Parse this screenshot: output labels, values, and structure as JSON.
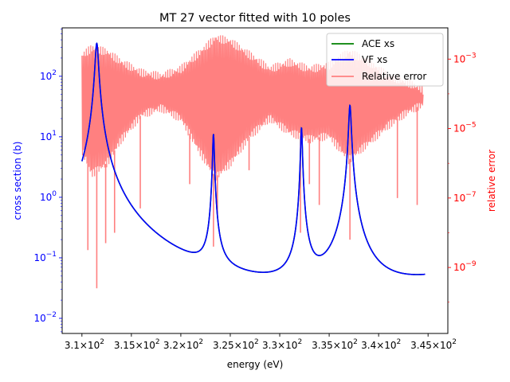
{
  "chart_data": {
    "type": "line",
    "title": "MT 27 vector fitted with 10 poles",
    "xlabel": "energy (eV)",
    "ylabel_left": "cross section (b)",
    "ylabel_right": "relative error",
    "xlim": [
      308,
      347
    ],
    "ylim_left_log10": [
      -2.25,
      2.8
    ],
    "ylim_right_log10": [
      -10.9,
      -2.1
    ],
    "x_scale": "linear",
    "y_left_scale": "log",
    "y_right_scale": "log",
    "x_ticks": [
      {
        "v": 310,
        "mant": "3.1",
        "exp": "2"
      },
      {
        "v": 315,
        "mant": "3.15",
        "exp": "2"
      },
      {
        "v": 320,
        "mant": "3.2",
        "exp": "2"
      },
      {
        "v": 325,
        "mant": "3.25",
        "exp": "2"
      },
      {
        "v": 330,
        "mant": "3.3",
        "exp": "2"
      },
      {
        "v": 335,
        "mant": "3.35",
        "exp": "2"
      },
      {
        "v": 340,
        "mant": "3.4",
        "exp": "2"
      },
      {
        "v": 345,
        "mant": "3.45",
        "exp": "2"
      }
    ],
    "y_left_ticks": [
      {
        "e": -2,
        "label": "10",
        "exp": "−2"
      },
      {
        "e": -1,
        "label": "10",
        "exp": "−1"
      },
      {
        "e": 0,
        "label": "10",
        "exp": "0"
      },
      {
        "e": 1,
        "label": "10",
        "exp": "1"
      },
      {
        "e": 2,
        "label": "10",
        "exp": "2"
      }
    ],
    "y_right_ticks": [
      {
        "e": -9,
        "label": "10",
        "exp": "−9"
      },
      {
        "e": -7,
        "label": "10",
        "exp": "−7"
      },
      {
        "e": -5,
        "label": "10",
        "exp": "−5"
      },
      {
        "e": -3,
        "label": "10",
        "exp": "−3"
      }
    ],
    "resonances": [
      {
        "x0": 311.5,
        "peak": 350,
        "gamma": 0.16
      },
      {
        "x0": 323.3,
        "peak": 11,
        "gamma": 0.08
      },
      {
        "x0": 332.2,
        "peak": 14,
        "gamma": 0.08
      },
      {
        "x0": 337.1,
        "peak": 33,
        "gamma": 0.12
      }
    ],
    "error_envelope": {
      "points": [
        {
          "x": 310.0,
          "upper_log10": -2.9,
          "lower_log10": -5.6
        },
        {
          "x": 311.0,
          "upper_log10": -2.7,
          "lower_log10": -6.3
        },
        {
          "x": 312.5,
          "upper_log10": -2.8,
          "lower_log10": -6.0
        },
        {
          "x": 314.0,
          "upper_log10": -3.1,
          "lower_log10": -5.3
        },
        {
          "x": 316.0,
          "upper_log10": -3.4,
          "lower_log10": -4.6
        },
        {
          "x": 318.0,
          "upper_log10": -3.5,
          "lower_log10": -4.4
        },
        {
          "x": 320.0,
          "upper_log10": -3.3,
          "lower_log10": -4.7
        },
        {
          "x": 322.0,
          "upper_log10": -2.8,
          "lower_log10": -5.7
        },
        {
          "x": 323.5,
          "upper_log10": -2.4,
          "lower_log10": -6.4
        },
        {
          "x": 325.0,
          "upper_log10": -2.5,
          "lower_log10": -6.0
        },
        {
          "x": 327.0,
          "upper_log10": -2.9,
          "lower_log10": -5.2
        },
        {
          "x": 329.0,
          "upper_log10": -3.3,
          "lower_log10": -4.7
        },
        {
          "x": 331.0,
          "upper_log10": -3.1,
          "lower_log10": -5.1
        },
        {
          "x": 333.0,
          "upper_log10": -3.3,
          "lower_log10": -5.3
        },
        {
          "x": 335.0,
          "upper_log10": -3.2,
          "lower_log10": -5.2
        },
        {
          "x": 337.0,
          "upper_log10": -2.8,
          "lower_log10": -5.9
        },
        {
          "x": 339.0,
          "upper_log10": -3.1,
          "lower_log10": -5.4
        },
        {
          "x": 341.0,
          "upper_log10": -3.5,
          "lower_log10": -4.9
        },
        {
          "x": 343.0,
          "upper_log10": -3.7,
          "lower_log10": -4.5
        },
        {
          "x": 344.5,
          "upper_log10": -3.9,
          "lower_log10": -4.3
        }
      ],
      "dips": [
        {
          "x": 310.6,
          "log10": -8.5
        },
        {
          "x": 311.5,
          "log10": -9.6
        },
        {
          "x": 312.4,
          "log10": -8.3
        },
        {
          "x": 313.3,
          "log10": -8.0
        },
        {
          "x": 315.9,
          "log10": -7.3
        },
        {
          "x": 320.9,
          "log10": -6.6
        },
        {
          "x": 323.3,
          "log10": -8.4
        },
        {
          "x": 323.7,
          "log10": -7.5
        },
        {
          "x": 326.9,
          "log10": -6.2
        },
        {
          "x": 332.1,
          "log10": -8.0
        },
        {
          "x": 333.0,
          "log10": -6.6
        },
        {
          "x": 334.0,
          "log10": -7.2
        },
        {
          "x": 337.1,
          "log10": -8.2
        },
        {
          "x": 341.9,
          "log10": -7.0
        },
        {
          "x": 343.9,
          "log10": -7.2
        }
      ]
    },
    "series": [
      {
        "name": "ACE xs",
        "color": "#008000"
      },
      {
        "name": "VF xs",
        "color": "#0000ff"
      },
      {
        "name": "Relative error",
        "color": "#ff8080"
      }
    ],
    "legend_position": "top-right"
  }
}
